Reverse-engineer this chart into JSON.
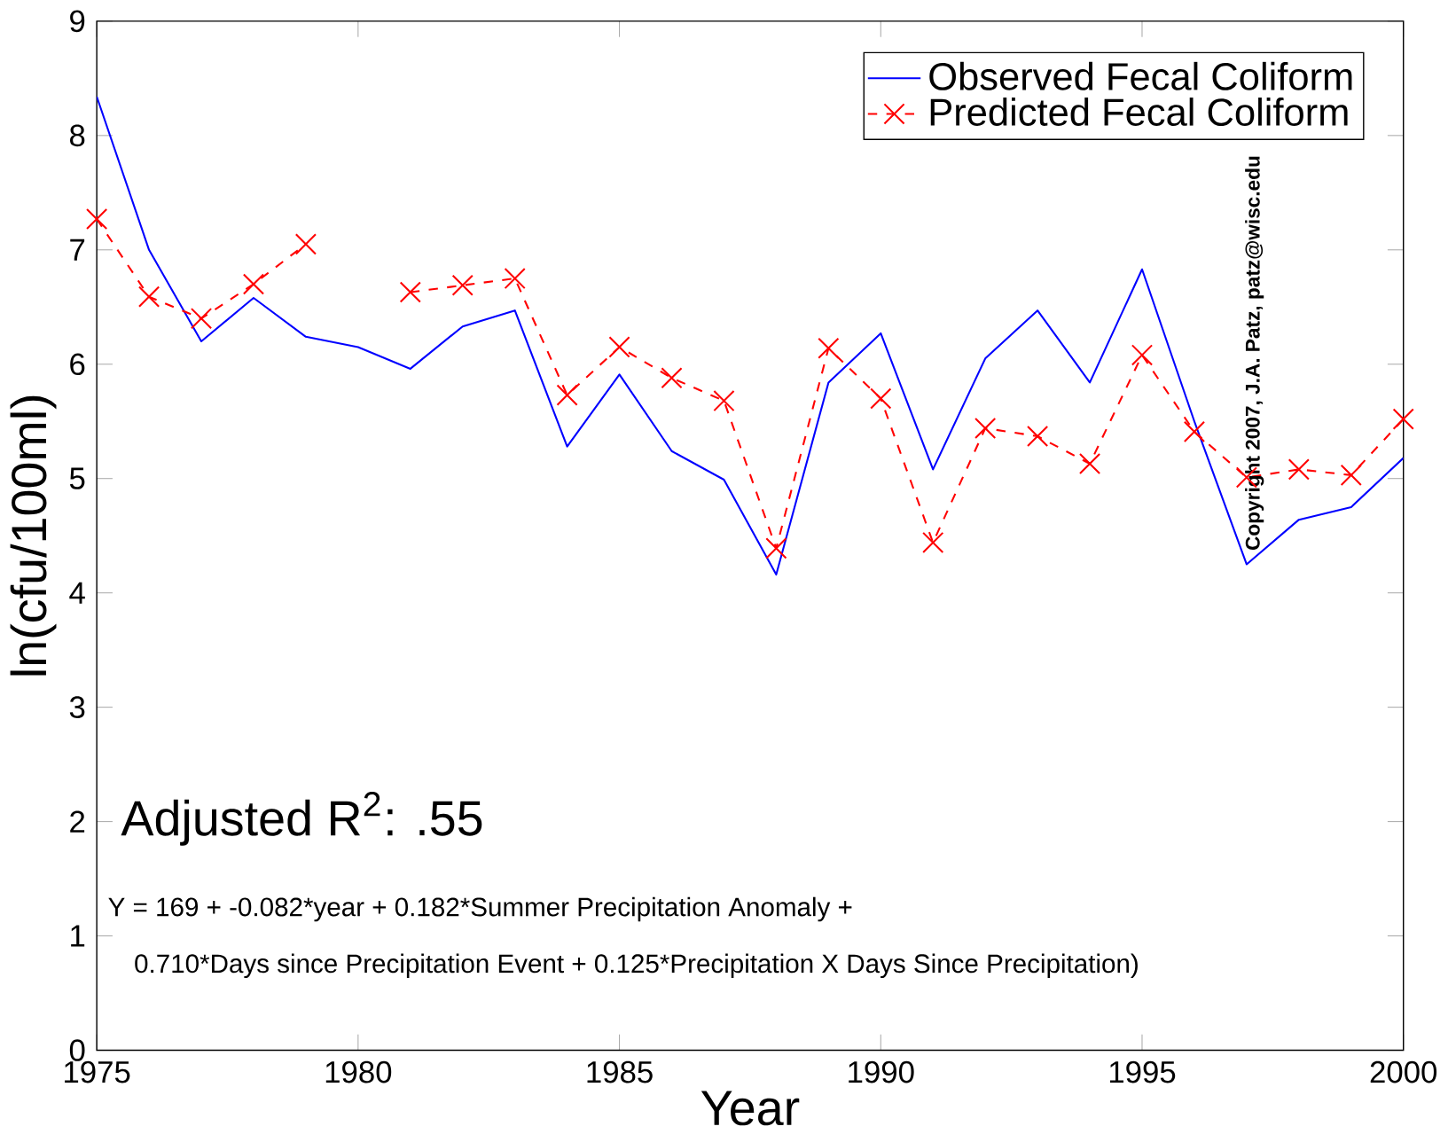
{
  "chart_data": {
    "type": "line",
    "xlabel": "Year",
    "ylabel": "ln(cfu/100ml)",
    "x": [
      1975,
      1976,
      1977,
      1978,
      1979,
      1980,
      1981,
      1982,
      1983,
      1984,
      1985,
      1986,
      1987,
      1988,
      1989,
      1990,
      1991,
      1992,
      1993,
      1994,
      1995,
      1996,
      1997,
      1998,
      1999,
      2000
    ],
    "series": [
      {
        "name": "Observed Fecal Coliform",
        "color": "#0000ff",
        "marker": "none",
        "line_style": "solid",
        "values": [
          8.34,
          7.0,
          6.2,
          6.58,
          6.24,
          6.15,
          5.96,
          6.33,
          6.47,
          5.28,
          5.91,
          5.24,
          4.99,
          4.16,
          5.84,
          6.27,
          5.08,
          6.05,
          6.47,
          5.84,
          6.83,
          5.5,
          4.25,
          4.64,
          4.75,
          5.18
        ]
      },
      {
        "name": "Predicted Fecal Coliform",
        "color": "#ff0000",
        "marker": "cross",
        "line_style": "dashed",
        "values": [
          7.27,
          6.59,
          6.4,
          6.7,
          7.05,
          null,
          6.63,
          6.69,
          6.75,
          5.73,
          6.15,
          5.88,
          5.68,
          4.39,
          6.14,
          5.7,
          4.44,
          5.44,
          5.37,
          5.13,
          6.08,
          5.41,
          5.01,
          5.08,
          5.03,
          5.52
        ]
      }
    ],
    "xlim": [
      1975,
      2000
    ],
    "xticks": [
      1975,
      1980,
      1985,
      1990,
      1995,
      2000
    ],
    "ylim": [
      0,
      9
    ],
    "yticks": [
      0,
      1,
      2,
      3,
      4,
      5,
      6,
      7,
      8,
      9
    ],
    "legend": "top right",
    "grid": false,
    "annotations": [
      "Adjusted R$^{2}$: .55",
      "Y = 169 + -0.082*year + 0.182*Summer Precipitation Anomaly +",
      "0.710*Days since Precipitation Event + 0.125*Precipitation X Days Since Precipitation)",
      "Copyright 2007, J.A. Patz, patz@wisc.edu"
    ]
  }
}
